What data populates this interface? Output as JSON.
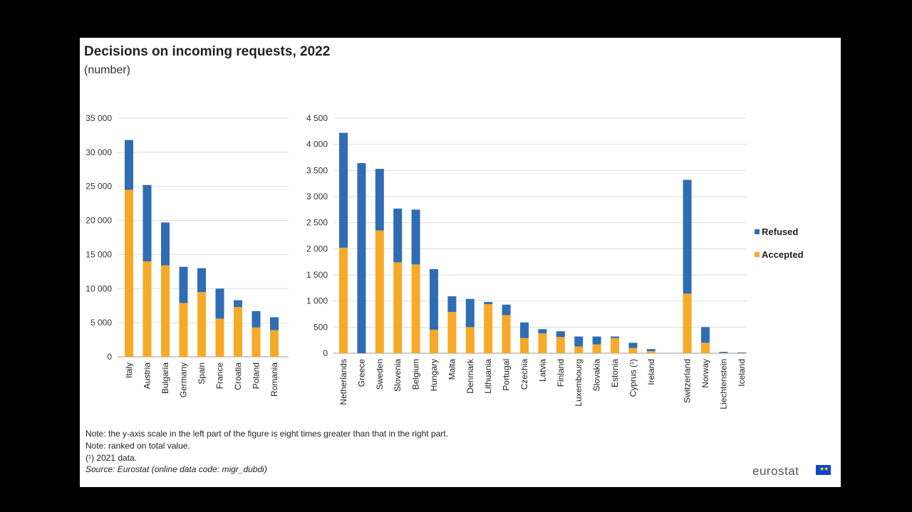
{
  "title": "Decisions on incoming requests, 2022",
  "subtitle": "(number)",
  "notes": [
    "Note: the y-axis scale in the left part of the figure is eight times greater than that in the right part.",
    "Note: ranked on total value.",
    "(¹) 2021 data."
  ],
  "source": "Source: Eurostat (online data code: migr_dubdi)",
  "logo": "eurostat",
  "colors": {
    "refused": "#2e6db4",
    "accepted": "#f7a928"
  },
  "chart_data": [
    {
      "type": "bar",
      "stacked": true,
      "categories": [
        "Italy",
        "Austria",
        "Bulgaria",
        "Germany",
        "Spain",
        "France",
        "Croatia",
        "Poland",
        "Romania"
      ],
      "series": [
        {
          "name": "Accepted",
          "values": [
            24500,
            14000,
            13400,
            7900,
            9500,
            5600,
            7300,
            4300,
            3900
          ]
        },
        {
          "name": "Refused",
          "values": [
            7300,
            11200,
            6300,
            5300,
            3500,
            4400,
            1000,
            2400,
            1900
          ]
        }
      ],
      "ylim": [
        0,
        35000
      ],
      "yticks": [
        "0",
        "5 000",
        "10 000",
        "15 000",
        "20 000",
        "25 000",
        "30 000",
        "35 000"
      ],
      "grid": true
    },
    {
      "type": "bar",
      "stacked": true,
      "categories": [
        "Netherlands",
        "Greece",
        "Sweden",
        "Slovenia",
        "Belgium",
        "Hungary",
        "Malta",
        "Denmark",
        "Lithuania",
        "Portugal",
        "Czechia",
        "Latvia",
        "Finland",
        "Luxembourg",
        "Slovakia",
        "Estonia",
        "Cyprus (¹)",
        "Ireland",
        "",
        "Switzerland",
        "Norway",
        "Liechtenstein",
        "Iceland"
      ],
      "series": [
        {
          "name": "Accepted",
          "values": [
            2020,
            0,
            2350,
            1740,
            1700,
            450,
            790,
            500,
            940,
            730,
            290,
            380,
            310,
            130,
            170,
            290,
            100,
            40,
            null,
            1140,
            200,
            5,
            5
          ]
        },
        {
          "name": "Refused",
          "values": [
            2200,
            3640,
            1180,
            1030,
            1050,
            1160,
            300,
            540,
            40,
            200,
            300,
            80,
            110,
            190,
            150,
            30,
            100,
            40,
            null,
            2180,
            300,
            20,
            10
          ]
        }
      ],
      "ylim": [
        0,
        4500
      ],
      "yticks": [
        "0",
        "500",
        "1 000",
        "1 500",
        "2 000",
        "2 500",
        "3 000",
        "3 500",
        "4 000",
        "4 500"
      ],
      "grid": true,
      "legend_position": "right"
    }
  ]
}
